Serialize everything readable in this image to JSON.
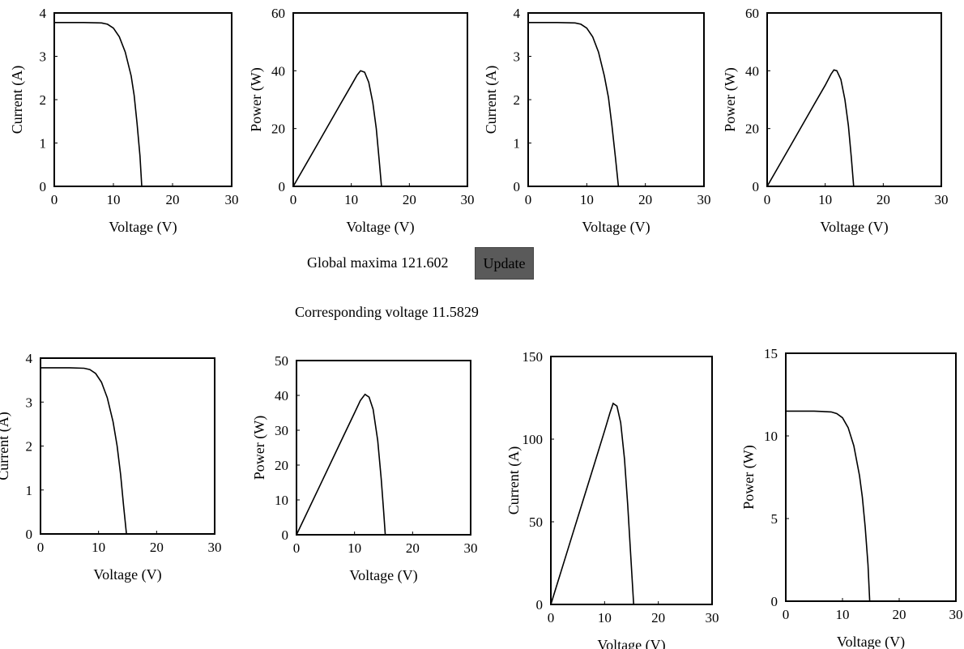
{
  "controls": {
    "global_maxima_label": "Global maxima",
    "global_maxima_value": "121.602",
    "update_label": "Update",
    "corresponding_voltage_label": "Corresponding voltage",
    "corresponding_voltage_value": "11.5829"
  },
  "chart_data": [
    {
      "type": "line",
      "xlabel": "Voltage (V)",
      "ylabel": "Current (A)",
      "xlim": [
        0,
        30
      ],
      "ylim": [
        0,
        4
      ],
      "xticks": [
        0,
        10,
        20,
        30
      ],
      "yticks": [
        0,
        1,
        2,
        3,
        4
      ],
      "series": [
        {
          "x": [
            0,
            5,
            8,
            9,
            10,
            11,
            12,
            13,
            13.5,
            14,
            14.5,
            14.8
          ],
          "y": [
            3.78,
            3.78,
            3.77,
            3.74,
            3.65,
            3.45,
            3.1,
            2.55,
            2.1,
            1.45,
            0.7,
            0
          ]
        }
      ]
    },
    {
      "type": "line",
      "xlabel": "Voltage (V)",
      "ylabel": "Power (W)",
      "xlim": [
        0,
        30
      ],
      "ylim": [
        0,
        60
      ],
      "xticks": [
        0,
        10,
        20,
        30
      ],
      "yticks": [
        0,
        20,
        40,
        60
      ],
      "series": [
        {
          "x": [
            0,
            4,
            8,
            10,
            11,
            11.6,
            12.3,
            13,
            13.7,
            14.3,
            14.8,
            15.2
          ],
          "y": [
            0,
            14,
            28,
            35,
            38.5,
            40,
            39.5,
            36,
            29,
            20,
            9,
            0
          ]
        }
      ]
    },
    {
      "type": "line",
      "xlabel": "Voltage (V)",
      "ylabel": "Current (A)",
      "xlim": [
        0,
        30
      ],
      "ylim": [
        0,
        4
      ],
      "xticks": [
        0,
        10,
        20,
        30
      ],
      "yticks": [
        0,
        1,
        2,
        3,
        4
      ],
      "series": [
        {
          "x": [
            0,
            5,
            8,
            9,
            10,
            11,
            12,
            13,
            13.7,
            14.3,
            14.9,
            15.4
          ],
          "y": [
            3.78,
            3.78,
            3.77,
            3.74,
            3.65,
            3.45,
            3.1,
            2.55,
            2.05,
            1.4,
            0.65,
            0
          ]
        }
      ]
    },
    {
      "type": "line",
      "xlabel": "Voltage (V)",
      "ylabel": "Power (W)",
      "xlim": [
        0,
        30
      ],
      "ylim": [
        0,
        60
      ],
      "xticks": [
        0,
        10,
        20,
        30
      ],
      "yticks": [
        0,
        20,
        40,
        60
      ],
      "series": [
        {
          "x": [
            0,
            4,
            8,
            10,
            11,
            11.5,
            12,
            12.7,
            13.4,
            14,
            14.5,
            14.9
          ],
          "y": [
            0,
            14,
            28,
            35,
            38.8,
            40.3,
            40,
            37,
            30,
            21,
            10,
            0
          ]
        }
      ]
    },
    {
      "type": "line",
      "xlabel": "Voltage (V)",
      "ylabel": "Current (A)",
      "xlim": [
        0,
        30
      ],
      "ylim": [
        0,
        4
      ],
      "xticks": [
        0,
        10,
        20,
        30
      ],
      "yticks": [
        0,
        1,
        2,
        3,
        4
      ],
      "series": [
        {
          "x": [
            0,
            5,
            7.5,
            8.5,
            9.5,
            10.5,
            11.5,
            12.5,
            13.2,
            13.8,
            14.3,
            14.8
          ],
          "y": [
            3.78,
            3.78,
            3.77,
            3.74,
            3.65,
            3.45,
            3.1,
            2.55,
            2.0,
            1.35,
            0.65,
            0
          ]
        }
      ]
    },
    {
      "type": "line",
      "xlabel": "Voltage (V)",
      "ylabel": "Power (W)",
      "xlim": [
        0,
        30
      ],
      "ylim": [
        0,
        50
      ],
      "xticks": [
        0,
        10,
        20,
        30
      ],
      "yticks": [
        0,
        10,
        20,
        30,
        40,
        50
      ],
      "series": [
        {
          "x": [
            0,
            4,
            8,
            10,
            11,
            11.8,
            12.5,
            13.2,
            14,
            14.6,
            15,
            15.3
          ],
          "y": [
            0,
            14,
            28,
            35,
            38.5,
            40.3,
            39.5,
            36,
            27,
            16,
            7,
            0
          ]
        }
      ]
    },
    {
      "type": "line",
      "xlabel": "Voltage (V)",
      "ylabel": "Current (A)",
      "xlim": [
        0,
        30
      ],
      "ylim": [
        0,
        150
      ],
      "xticks": [
        0,
        10,
        20,
        30
      ],
      "yticks": [
        0,
        50,
        100,
        150
      ],
      "series": [
        {
          "x": [
            0,
            4,
            8,
            10,
            11,
            11.6,
            12.3,
            13,
            13.7,
            14.3,
            14.9,
            15.4
          ],
          "y": [
            0,
            42,
            84,
            105,
            116,
            121.6,
            120,
            110,
            88,
            60,
            28,
            0
          ]
        }
      ]
    },
    {
      "type": "line",
      "xlabel": "Voltage (V)",
      "ylabel": "Power (W)",
      "xlim": [
        0,
        30
      ],
      "ylim": [
        0,
        15
      ],
      "xticks": [
        0,
        10,
        20,
        30
      ],
      "yticks": [
        0,
        5,
        10,
        15
      ],
      "series": [
        {
          "x": [
            0,
            5,
            8,
            9,
            10,
            11,
            12,
            13,
            13.5,
            14,
            14.5,
            14.8
          ],
          "y": [
            11.5,
            11.5,
            11.45,
            11.35,
            11.1,
            10.5,
            9.4,
            7.6,
            6.3,
            4.5,
            2.2,
            0
          ]
        }
      ]
    }
  ]
}
